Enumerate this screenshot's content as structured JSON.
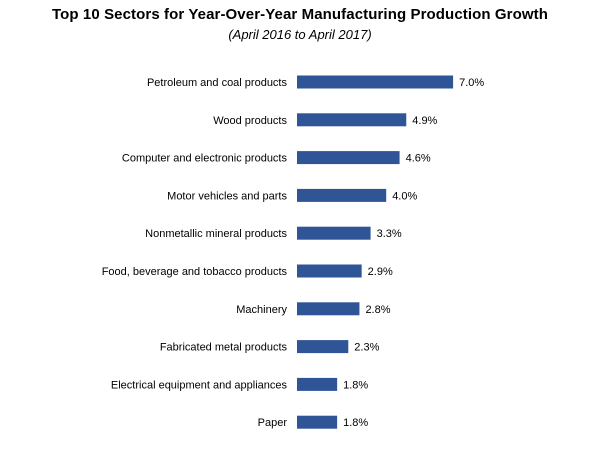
{
  "chart_data": {
    "type": "bar",
    "orientation": "horizontal",
    "title": "Top 10 Sectors for Year-Over-Year Manufacturing Production Growth",
    "subtitle": "(April 2016 to April 2017)",
    "categories": [
      "Petroleum and coal products",
      "Wood products",
      "Computer and electronic products",
      "Motor vehicles and parts",
      "Nonmetallic mineral products",
      "Food, beverage and tobacco products",
      "Machinery",
      "Fabricated metal products",
      "Electrical equipment and appliances",
      "Paper"
    ],
    "values": [
      7.0,
      4.9,
      4.6,
      4.0,
      3.3,
      2.9,
      2.8,
      2.3,
      1.8,
      1.8
    ],
    "value_labels": [
      "7.0%",
      "4.9%",
      "4.6%",
      "4.0%",
      "3.3%",
      "2.9%",
      "2.8%",
      "2.3%",
      "1.8%",
      "1.8%"
    ],
    "unit": "%",
    "bar_color": "#2F5597",
    "xlim": [
      0,
      8
    ],
    "grid": false,
    "legend": "none"
  }
}
